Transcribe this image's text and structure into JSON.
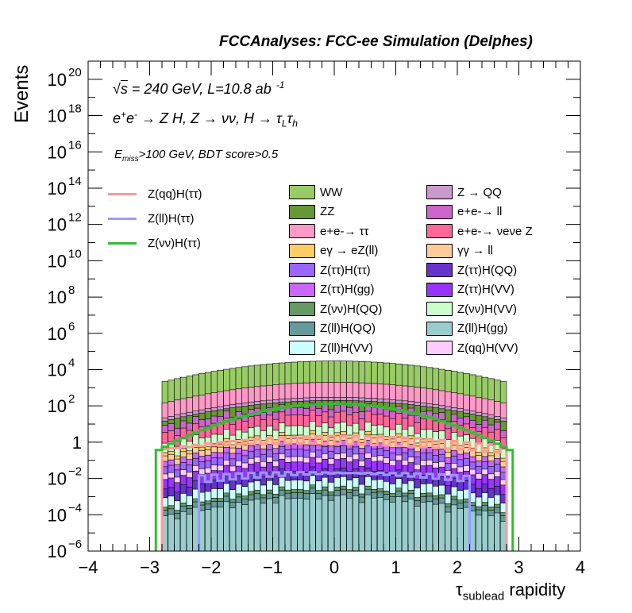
{
  "chart_data": {
    "type": "histogram-stacked",
    "title": "FCCAnalyses: FCC-ee Simulation (Delphes)",
    "xlabel": "τsublead rapidity",
    "xlabel_main": "τ",
    "xlabel_sub": "sublead",
    "xlabel_rest": "rapidity",
    "ylabel": "Events",
    "y_scale": "log",
    "xlim": [
      -4,
      4
    ],
    "ylim": [
      1e-06,
      1e+21
    ],
    "x_ticks": [
      "−4",
      "−3",
      "−2",
      "−1",
      "0",
      "1",
      "2",
      "3",
      "4"
    ],
    "y_ticks": [
      {
        "text": "10",
        "exp": "−6"
      },
      {
        "text": "10",
        "exp": "−4"
      },
      {
        "text": "10",
        "exp": "−2"
      },
      {
        "text": "1",
        "exp": ""
      },
      {
        "text": "10",
        "exp": "2"
      },
      {
        "text": "10",
        "exp": "4"
      },
      {
        "text": "10",
        "exp": "6"
      },
      {
        "text": "10",
        "exp": "8"
      },
      {
        "text": "10",
        "exp": "10"
      },
      {
        "text": "10",
        "exp": "12"
      },
      {
        "text": "10",
        "exp": "14"
      },
      {
        "text": "10",
        "exp": "16"
      },
      {
        "text": "10",
        "exp": "18"
      },
      {
        "text": "10",
        "exp": "20"
      }
    ],
    "annotations": {
      "energy": "√s = 240 GeV, L=10.8 ab",
      "energy_sqrt": "√",
      "energy_s": "s",
      "energy_rest": " = 240 GeV, L=10.8 ab",
      "energy_exp": "-1",
      "process": "e+e- → Z H, Z → νν, H → τLτh",
      "selection": "Emiss>100 GeV, BDT score>0.5",
      "sel_E": "E",
      "sel_sub": "miss",
      "sel_rest": ">100 GeV, BDT score>0.5"
    },
    "total_background": {
      "bin_width": 0.1,
      "x_range": [
        -2.8,
        2.8
      ],
      "peak_value": 30000,
      "edge_value": 2000
    },
    "stack_layers": [
      {
        "name": "WW",
        "color": "#99cc66",
        "level": 30000
      },
      {
        "name": "e+e-→ ττ",
        "color": "#ff99c7",
        "level": 2000
      },
      {
        "name": "Z → QQ",
        "color": "#cc99cc",
        "level": 300
      },
      {
        "name": "ZZ",
        "color": "#669933",
        "level": 200
      },
      {
        "name": "e+e-→ ll",
        "color": "#cc66cc",
        "level": 100
      },
      {
        "name": "e+e-→ νeνe Z",
        "color": "#ff6699",
        "level": 40
      },
      {
        "name": "Z(νν)H(VV)",
        "color": "#ccffcc",
        "level": 10
      },
      {
        "name": "eγ → eZ(ll)",
        "color": "#ffcc66",
        "level": 3
      },
      {
        "name": "γγ → ll",
        "color": "#ffcc99",
        "level": 2
      },
      {
        "name": "Z(ττ)H(gg)",
        "color": "#cc66ff",
        "level": 1
      },
      {
        "name": "Z(ττ)H(ττ)",
        "color": "#9966ff",
        "level": 0.5
      },
      {
        "name": "Z(qq)H(VV)",
        "color": "#ffccff",
        "level": 0.2
      },
      {
        "name": "Z(ττ)H(VV)",
        "color": "#9933ff",
        "level": 0.1
      },
      {
        "name": "Z(ττ)H(QQ)",
        "color": "#6633cc",
        "level": 0.03
      },
      {
        "name": "Z(ll)H(VV)",
        "color": "#ccffff",
        "level": 0.01
      },
      {
        "name": "Z(νν)H(QQ)",
        "color": "#669966",
        "level": 0.003
      },
      {
        "name": "Z(ll)H(QQ)",
        "color": "#669999",
        "level": 0.002
      },
      {
        "name": "Z(ll)H(gg)",
        "color": "#99cccc",
        "level": 0.001
      }
    ],
    "signal_lines": [
      {
        "name": "Z(qq)H(ττ)",
        "color": "#ff9999",
        "x_range": [
          -2.8,
          2.8
        ],
        "peak": 1.5,
        "edge": 0.4
      },
      {
        "name": "Z(ll)H(ττ)",
        "color": "#9999ff",
        "x_range": [
          -2.2,
          2.2
        ],
        "peak": 0.02,
        "edge": 0.01
      },
      {
        "name": "Z(νν)H(ττ)",
        "color": "#33bb33",
        "x_range": [
          -2.9,
          2.9
        ],
        "peak": 130,
        "edge": 0.3
      }
    ],
    "legend_lines": [
      {
        "label": "Z(qq)H(ττ)",
        "color": "#ff9999"
      },
      {
        "label": "Z(ll)H(ττ)",
        "color": "#9999ff"
      },
      {
        "label": "Z(νν)H(ττ)",
        "color": "#33bb33"
      }
    ],
    "legend_boxes": [
      {
        "label": "WW",
        "color": "#99cc66"
      },
      {
        "label": "Z → QQ",
        "color": "#cc99cc"
      },
      {
        "label": "ZZ",
        "color": "#669933"
      },
      {
        "label": "e+e-→ ll",
        "color": "#cc66cc"
      },
      {
        "label": "e+e-→ ττ",
        "color": "#ff99c7"
      },
      {
        "label": "e+e-→ νeνe Z",
        "color": "#ff6699"
      },
      {
        "label": "eγ → eZ(ll)",
        "color": "#ffcc66"
      },
      {
        "label": "γγ → ll",
        "color": "#ffcc99"
      },
      {
        "label": "Z(ττ)H(ττ)",
        "color": "#9966ff"
      },
      {
        "label": "Z(ττ)H(QQ)",
        "color": "#6633cc"
      },
      {
        "label": "Z(ττ)H(gg)",
        "color": "#cc66ff"
      },
      {
        "label": "Z(ττ)H(VV)",
        "color": "#9933ff"
      },
      {
        "label": "Z(νν)H(QQ)",
        "color": "#669966"
      },
      {
        "label": "Z(νν)H(VV)",
        "color": "#ccffcc"
      },
      {
        "label": "Z(ll)H(QQ)",
        "color": "#669999"
      },
      {
        "label": "Z(ll)H(gg)",
        "color": "#99cccc"
      },
      {
        "label": "Z(ll)H(VV)",
        "color": "#ccffff"
      },
      {
        "label": "Z(qq)H(VV)",
        "color": "#ffccff"
      }
    ]
  }
}
